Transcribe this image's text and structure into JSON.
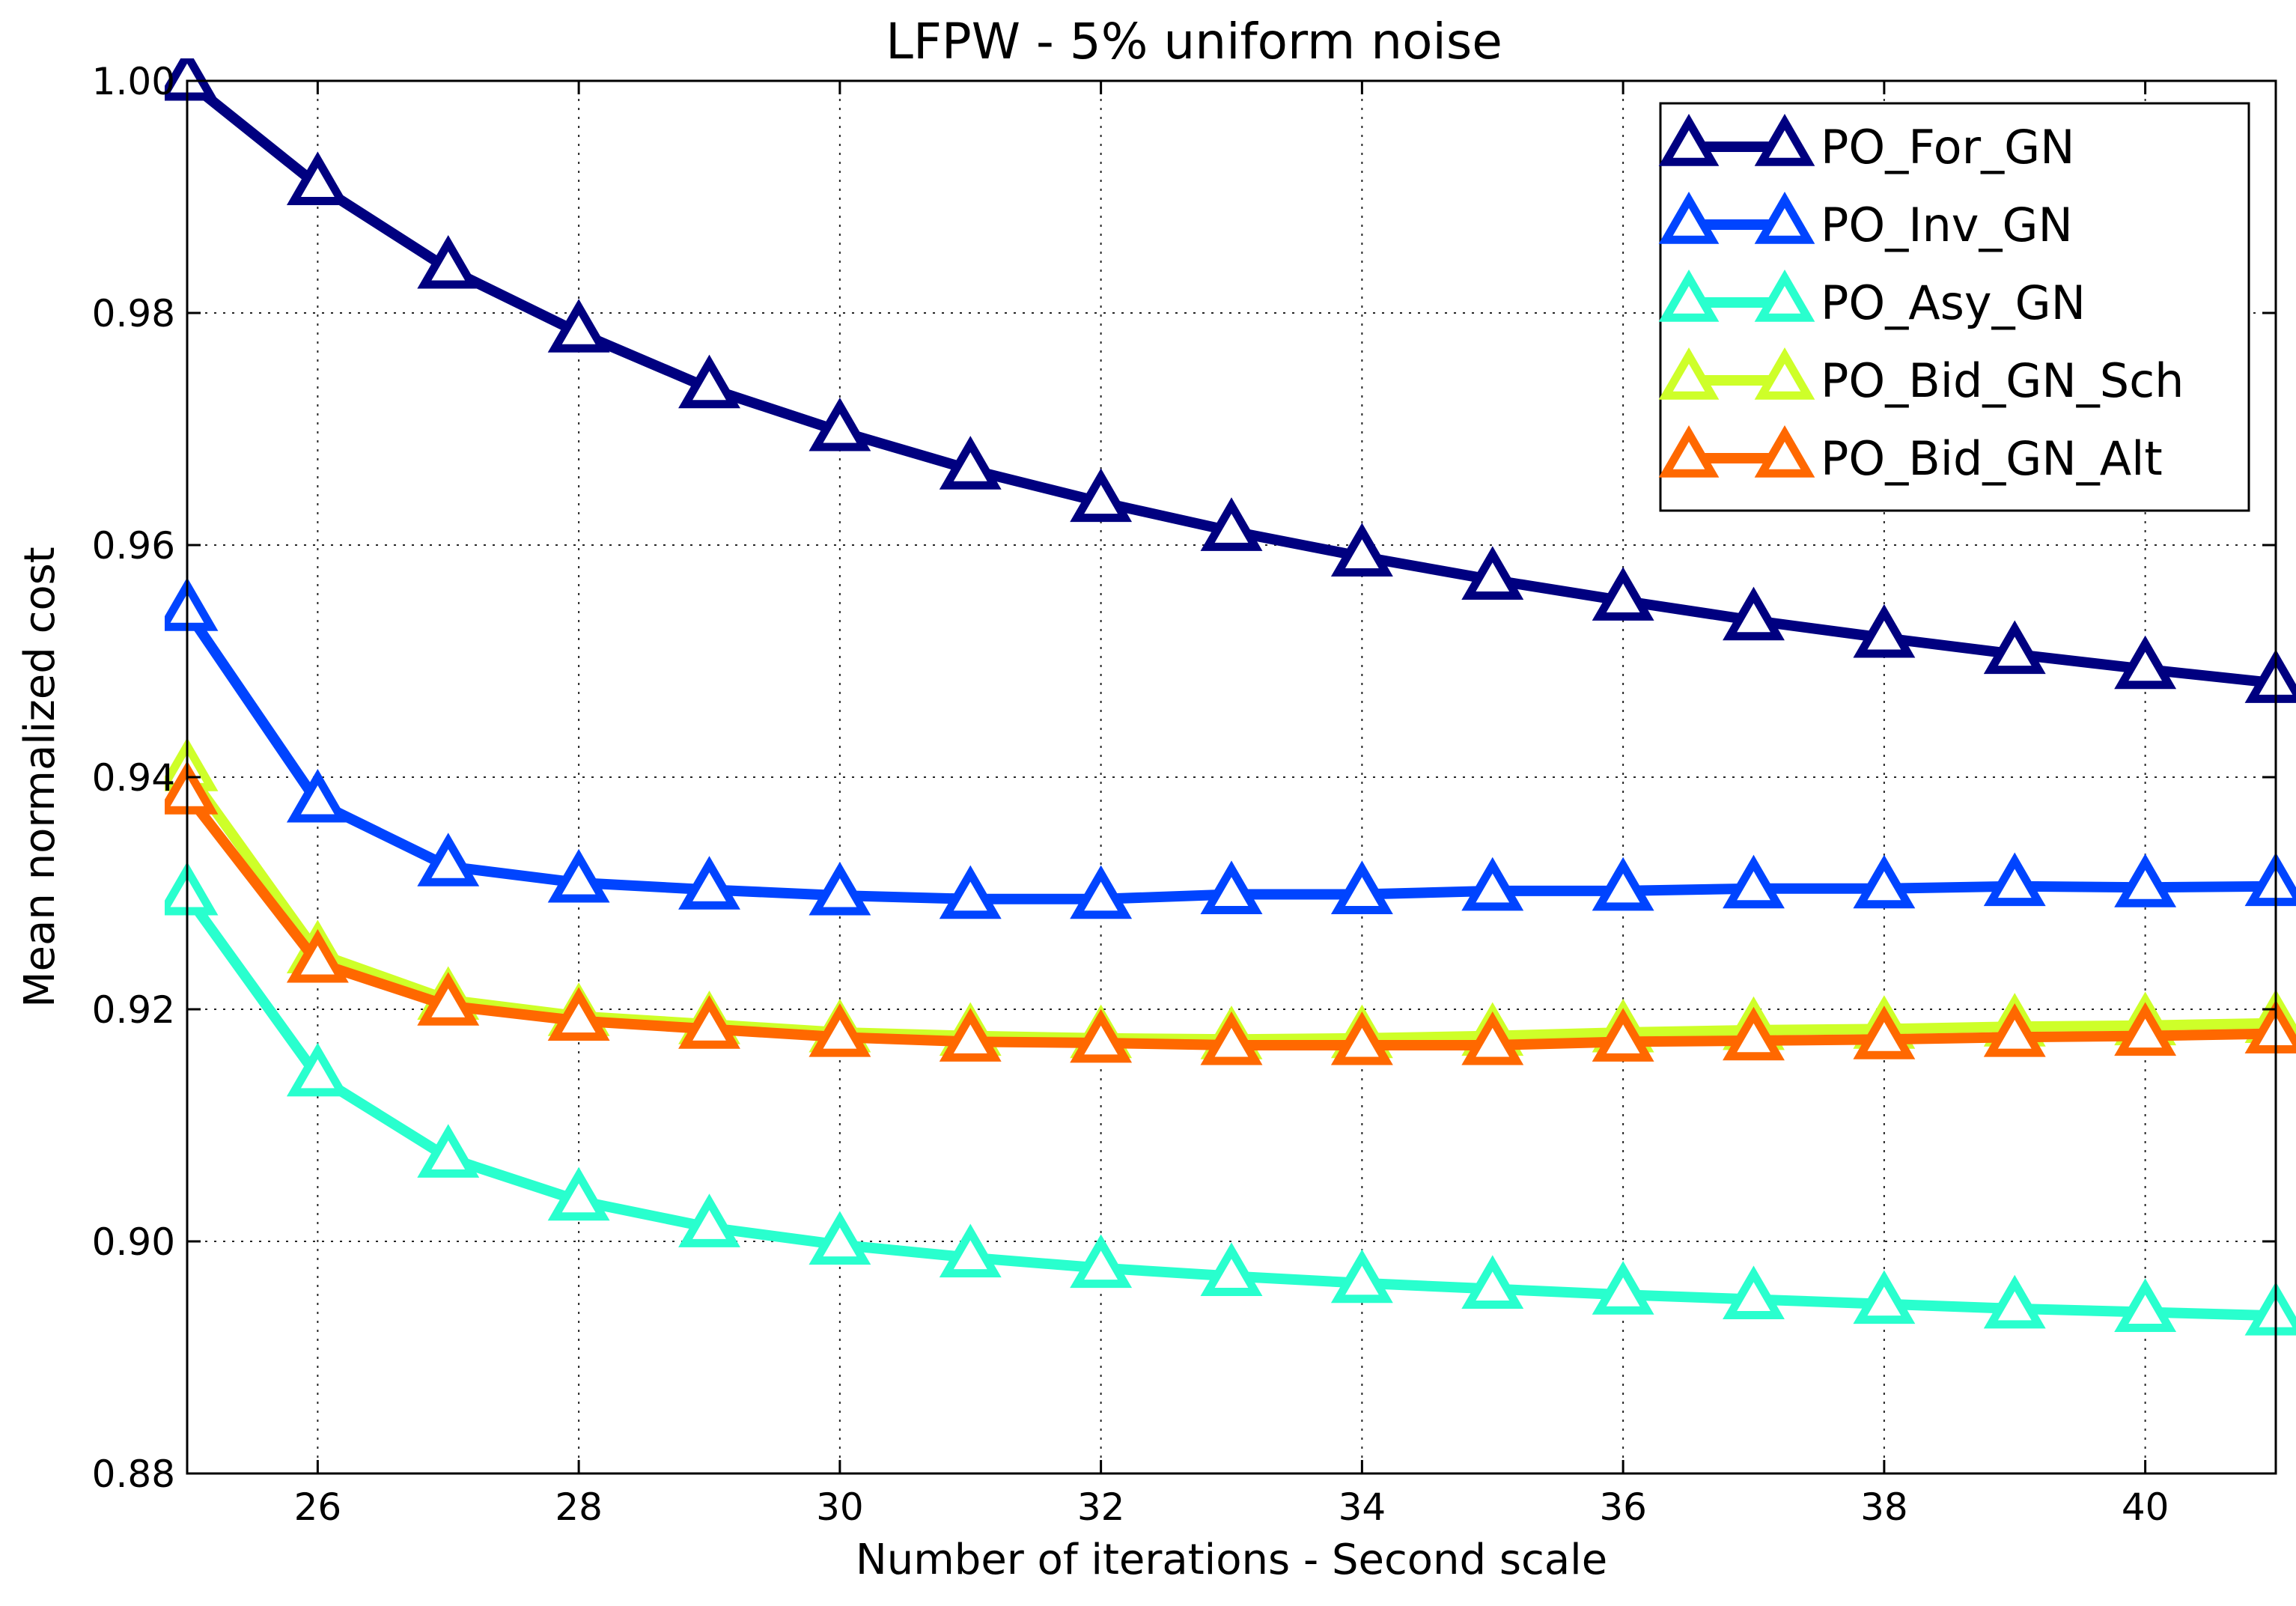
{
  "chart_data": {
    "type": "line",
    "title": "LFPW - 5% uniform noise",
    "xlabel": "Number of iterations - Second scale",
    "ylabel": "Mean normalized cost",
    "xlim": [
      25,
      41
    ],
    "ylim": [
      0.88,
      1.0
    ],
    "xticks": [
      26,
      28,
      30,
      32,
      34,
      36,
      38,
      40
    ],
    "xtick_labels": [
      "26",
      "28",
      "30",
      "32",
      "34",
      "36",
      "38",
      "40"
    ],
    "yticks": [
      0.88,
      0.9,
      0.92,
      0.94,
      0.96,
      0.98,
      1.0
    ],
    "ytick_labels": [
      "0.88",
      "0.90",
      "0.92",
      "0.94",
      "0.96",
      "0.98",
      "1.00"
    ],
    "grid": true,
    "legend_position": "top-right",
    "marker": "triangle",
    "x": [
      25,
      26,
      27,
      28,
      29,
      30,
      31,
      32,
      33,
      34,
      35,
      36,
      37,
      38,
      39,
      40,
      41
    ],
    "series": [
      {
        "name": "PO_For_GN",
        "color": "#000080",
        "values": [
          1.0,
          0.991,
          0.9838,
          0.9783,
          0.9735,
          0.9698,
          0.9665,
          0.9637,
          0.9612,
          0.959,
          0.957,
          0.9552,
          0.9535,
          0.952,
          0.9506,
          0.9493,
          0.9481
        ]
      },
      {
        "name": "PO_Inv_GN",
        "color": "#0044ff",
        "values": [
          0.9543,
          0.9378,
          0.9323,
          0.9309,
          0.9303,
          0.9298,
          0.9295,
          0.9295,
          0.9299,
          0.9299,
          0.9302,
          0.9302,
          0.9304,
          0.9304,
          0.9306,
          0.9305,
          0.9306
        ]
      },
      {
        "name": "PO_Asy_GN",
        "color": "#29ffce",
        "values": [
          0.9298,
          0.9142,
          0.9072,
          0.9035,
          0.9012,
          0.8997,
          0.8986,
          0.8977,
          0.897,
          0.8964,
          0.8959,
          0.8954,
          0.895,
          0.8946,
          0.8942,
          0.8939,
          0.8936
        ]
      },
      {
        "name": "PO_Bid_GN_Sch",
        "color": "#ceff29",
        "values": [
          0.9405,
          0.9248,
          0.9208,
          0.9194,
          0.9187,
          0.918,
          0.9177,
          0.9175,
          0.9174,
          0.9175,
          0.9177,
          0.918,
          0.9182,
          0.9183,
          0.9185,
          0.9186,
          0.9188
        ]
      },
      {
        "name": "PO_Bid_GN_Alt",
        "color": "#ff6800",
        "values": [
          0.9385,
          0.924,
          0.9203,
          0.919,
          0.9183,
          0.9176,
          0.9172,
          0.9171,
          0.9169,
          0.9169,
          0.9169,
          0.9172,
          0.9173,
          0.9174,
          0.9176,
          0.9177,
          0.9179
        ]
      }
    ]
  }
}
